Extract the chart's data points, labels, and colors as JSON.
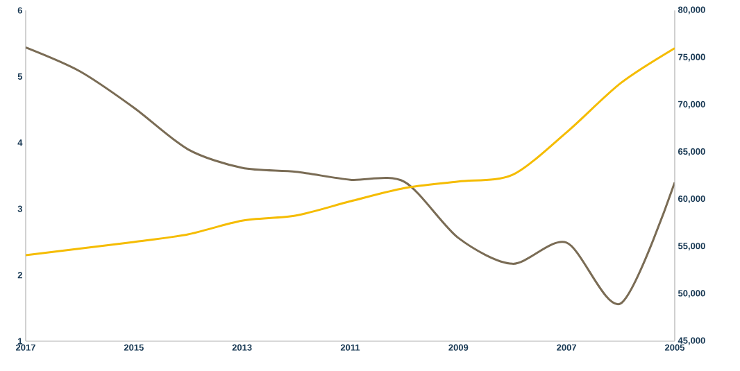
{
  "chart_data": {
    "type": "line",
    "x": [
      2017,
      2016,
      2015,
      2014,
      2013,
      2012,
      2011,
      2010,
      2009,
      2008,
      2007,
      2006,
      2005
    ],
    "series": [
      {
        "color": "#7a6c55",
        "values": [
          5.44,
          5.08,
          4.53,
          3.9,
          3.62,
          3.56,
          3.44,
          3.41,
          2.56,
          2.17,
          2.49,
          1.57,
          3.4
        ]
      },
      {
        "color": "#f5bc00",
        "axis": "y2",
        "values": [
          54100,
          54800,
          55500,
          56300,
          57750,
          58300,
          59800,
          61200,
          61900,
          62600,
          67100,
          72300,
          76000
        ]
      }
    ],
    "xlim": [
      2017,
      2005
    ],
    "xticks": [
      2017,
      2015,
      2013,
      2011,
      2009,
      2007,
      2005
    ],
    "ylim": [
      1,
      6
    ],
    "yticks": [
      1,
      2,
      3,
      4,
      5,
      6
    ],
    "y2lim": [
      45000,
      80000
    ],
    "y2ticks": [
      {
        "value": 45000,
        "label": "45,000"
      },
      {
        "value": 50000,
        "label": "50,000"
      },
      {
        "value": 55000,
        "label": "55,000"
      },
      {
        "value": 60000,
        "label": "60,000"
      },
      {
        "value": 65000,
        "label": "65,000"
      },
      {
        "value": 70000,
        "label": "70,000"
      },
      {
        "value": 75000,
        "label": "75,000"
      },
      {
        "value": 80000,
        "label": "80,000"
      }
    ],
    "marker": "none",
    "line_style": "solid"
  }
}
